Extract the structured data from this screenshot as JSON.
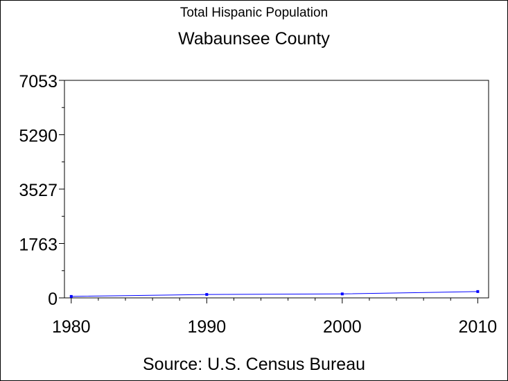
{
  "chart_data": {
    "type": "line",
    "title": "Total Hispanic Population",
    "subtitle": "Wabaunsee County",
    "source": "Source: U.S. Census Bureau",
    "xlabel": "",
    "ylabel": "",
    "x": [
      1980,
      1990,
      2000,
      2010
    ],
    "xlim": [
      1979.5,
      2010.8
    ],
    "x_ticks": [
      "1980",
      "1990",
      "2000",
      "2010"
    ],
    "y_ticks": [
      "0",
      "1763",
      "3527",
      "5290",
      "7053"
    ],
    "ylim": [
      0,
      7053
    ],
    "series": [
      {
        "values": [
          47,
          110,
          128,
          205
        ]
      }
    ],
    "grid": false,
    "colors": {
      "line": "#0000ff",
      "axis": "#000000",
      "background": "#ffffff"
    }
  }
}
